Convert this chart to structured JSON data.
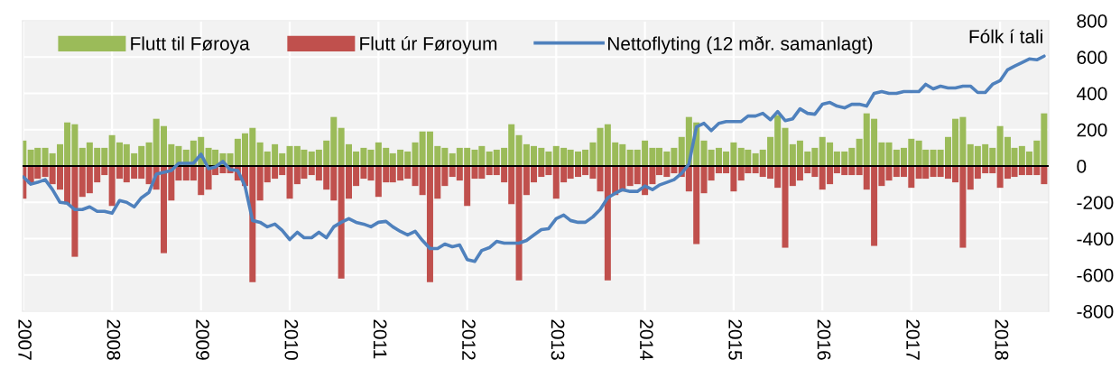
{
  "chart_data": {
    "type": "bar",
    "x": [
      "2007-01",
      "2007-02",
      "2007-03",
      "2007-04",
      "2007-05",
      "2007-06",
      "2007-07",
      "2007-08",
      "2007-09",
      "2007-10",
      "2007-11",
      "2007-12",
      "2008-01",
      "2008-02",
      "2008-03",
      "2008-04",
      "2008-05",
      "2008-06",
      "2008-07",
      "2008-08",
      "2008-09",
      "2008-10",
      "2008-11",
      "2008-12",
      "2009-01",
      "2009-02",
      "2009-03",
      "2009-04",
      "2009-05",
      "2009-06",
      "2009-07",
      "2009-08",
      "2009-09",
      "2009-10",
      "2009-11",
      "2009-12",
      "2010-01",
      "2010-02",
      "2010-03",
      "2010-04",
      "2010-05",
      "2010-06",
      "2010-07",
      "2010-08",
      "2010-09",
      "2010-10",
      "2010-11",
      "2010-12",
      "2011-01",
      "2011-02",
      "2011-03",
      "2011-04",
      "2011-05",
      "2011-06",
      "2011-07",
      "2011-08",
      "2011-09",
      "2011-10",
      "2011-11",
      "2011-12",
      "2012-01",
      "2012-02",
      "2012-03",
      "2012-04",
      "2012-05",
      "2012-06",
      "2012-07",
      "2012-08",
      "2012-09",
      "2012-10",
      "2012-11",
      "2012-12",
      "2013-01",
      "2013-02",
      "2013-03",
      "2013-04",
      "2013-05",
      "2013-06",
      "2013-07",
      "2013-08",
      "2013-09",
      "2013-10",
      "2013-11",
      "2013-12",
      "2014-01",
      "2014-02",
      "2014-03",
      "2014-04",
      "2014-05",
      "2014-06",
      "2014-07",
      "2014-08",
      "2014-09",
      "2014-10",
      "2014-11",
      "2014-12",
      "2015-01",
      "2015-02",
      "2015-03",
      "2015-04",
      "2015-05",
      "2015-06",
      "2015-07",
      "2015-08",
      "2015-09",
      "2015-10",
      "2015-11",
      "2015-12",
      "2016-01",
      "2016-02",
      "2016-03",
      "2016-04",
      "2016-05",
      "2016-06",
      "2016-07",
      "2016-08",
      "2016-09",
      "2016-10",
      "2016-11",
      "2016-12",
      "2017-01",
      "2017-02",
      "2017-03",
      "2017-04",
      "2017-05",
      "2017-06",
      "2017-07",
      "2017-08",
      "2017-09",
      "2017-10",
      "2017-11",
      "2017-12",
      "2018-01",
      "2018-02",
      "2018-03",
      "2018-04",
      "2018-05",
      "2018-06",
      "2018-07"
    ],
    "xlim": [
      "2006-12-29",
      "2018-07-20"
    ],
    "xticks": [
      "2007",
      "2008",
      "2009",
      "2010",
      "2011",
      "2012",
      "2013",
      "2014",
      "2015",
      "2016",
      "2017",
      "2018"
    ],
    "ylim": [
      -800,
      800
    ],
    "yticks": [
      -800,
      -600,
      -400,
      -200,
      0,
      200,
      400,
      600,
      800
    ],
    "ylabel": "Fólk í tali",
    "grid": true,
    "legend": "top left",
    "stacked": true,
    "ref_lines": [
      {
        "axis": "y",
        "value": 0,
        "color": "#000000"
      }
    ],
    "series": [
      {
        "name": "Flutt til Føroya",
        "color": "#9bbb59",
        "values": [
          140,
          90,
          100,
          100,
          70,
          120,
          240,
          230,
          100,
          130,
          100,
          100,
          170,
          130,
          120,
          70,
          110,
          130,
          260,
          220,
          120,
          110,
          90,
          140,
          160,
          100,
          90,
          70,
          70,
          150,
          180,
          210,
          130,
          80,
          120,
          70,
          110,
          110,
          90,
          80,
          90,
          140,
          270,
          210,
          120,
          80,
          100,
          90,
          130,
          100,
          70,
          90,
          80,
          130,
          190,
          190,
          110,
          100,
          70,
          100,
          100,
          90,
          110,
          80,
          90,
          100,
          230,
          170,
          120,
          110,
          100,
          80,
          110,
          100,
          90,
          80,
          90,
          130,
          210,
          230,
          130,
          120,
          90,
          90,
          140,
          100,
          100,
          80,
          100,
          160,
          270,
          240,
          140,
          90,
          100,
          80,
          130,
          100,
          90,
          70,
          90,
          160,
          280,
          210,
          120,
          140,
          80,
          100,
          160,
          130,
          80,
          80,
          100,
          150,
          290,
          260,
          130,
          130,
          90,
          100,
          150,
          140,
          90,
          90,
          90,
          160,
          260,
          270,
          120,
          110,
          120,
          100,
          220,
          160,
          100,
          110,
          80,
          140,
          290
        ]
      },
      {
        "name": "Flutt úr Føroyum",
        "color": "#c0504d",
        "values": [
          -180,
          -100,
          -70,
          -60,
          -100,
          -130,
          -210,
          -500,
          -170,
          -150,
          -90,
          -50,
          -220,
          -70,
          -90,
          -70,
          -70,
          -100,
          -130,
          -480,
          -190,
          -80,
          -80,
          -80,
          -160,
          -130,
          -50,
          -40,
          -40,
          -80,
          -110,
          -640,
          -190,
          -90,
          -70,
          -50,
          -180,
          -100,
          -70,
          -50,
          -80,
          -130,
          -190,
          -620,
          -180,
          -110,
          -70,
          -80,
          -170,
          -90,
          -90,
          -80,
          -70,
          -110,
          -160,
          -640,
          -180,
          -110,
          -60,
          -80,
          -220,
          -70,
          -70,
          -50,
          -50,
          -90,
          -210,
          -630,
          -160,
          -90,
          -60,
          -50,
          -180,
          -90,
          -70,
          -60,
          -50,
          -70,
          -140,
          -630,
          -160,
          -140,
          -110,
          -100,
          -160,
          -100,
          -50,
          -60,
          -40,
          -60,
          -140,
          -430,
          -150,
          -80,
          -40,
          -40,
          -140,
          -80,
          -40,
          -40,
          -60,
          -70,
          -120,
          -450,
          -110,
          -80,
          -40,
          -60,
          -130,
          -100,
          -40,
          -50,
          -50,
          -50,
          -130,
          -440,
          -110,
          -80,
          -60,
          -60,
          -120,
          -70,
          -70,
          -60,
          -60,
          -70,
          -90,
          -450,
          -130,
          -70,
          -40,
          -40,
          -120,
          -70,
          -60,
          -50,
          -50,
          -50,
          -100
        ]
      },
      {
        "name": "Nettoflyting (12 mðr. samanlagt)",
        "type": "line",
        "color": "#4f81bd",
        "values": [
          -60,
          -100,
          -90,
          -75,
          -130,
          -200,
          -205,
          -240,
          -240,
          -225,
          -250,
          -250,
          -260,
          -190,
          -200,
          -225,
          -175,
          -145,
          -45,
          -35,
          -25,
          15,
          15,
          15,
          65,
          -15,
          -5,
          25,
          -20,
          -25,
          -110,
          -300,
          -310,
          -335,
          -320,
          -355,
          -405,
          -365,
          -395,
          -395,
          -365,
          -395,
          -335,
          -310,
          -290,
          -310,
          -320,
          -335,
          -310,
          -305,
          -335,
          -360,
          -380,
          -360,
          -410,
          -455,
          -455,
          -430,
          -445,
          -435,
          -515,
          -525,
          -465,
          -450,
          -415,
          -425,
          -425,
          -425,
          -410,
          -380,
          -350,
          -345,
          -290,
          -270,
          -300,
          -310,
          -310,
          -280,
          -240,
          -175,
          -150,
          -130,
          -140,
          -140,
          -110,
          -130,
          -105,
          -90,
          -75,
          -40,
          10,
          215,
          235,
          195,
          235,
          245,
          245,
          245,
          275,
          275,
          290,
          255,
          300,
          250,
          260,
          315,
          290,
          285,
          340,
          350,
          330,
          320,
          340,
          340,
          330,
          400,
          410,
          400,
          400,
          410,
          410,
          410,
          450,
          425,
          440,
          430,
          430,
          440,
          440,
          405,
          405,
          450,
          470,
          530,
          550,
          570,
          590,
          585,
          605
        ]
      }
    ]
  }
}
